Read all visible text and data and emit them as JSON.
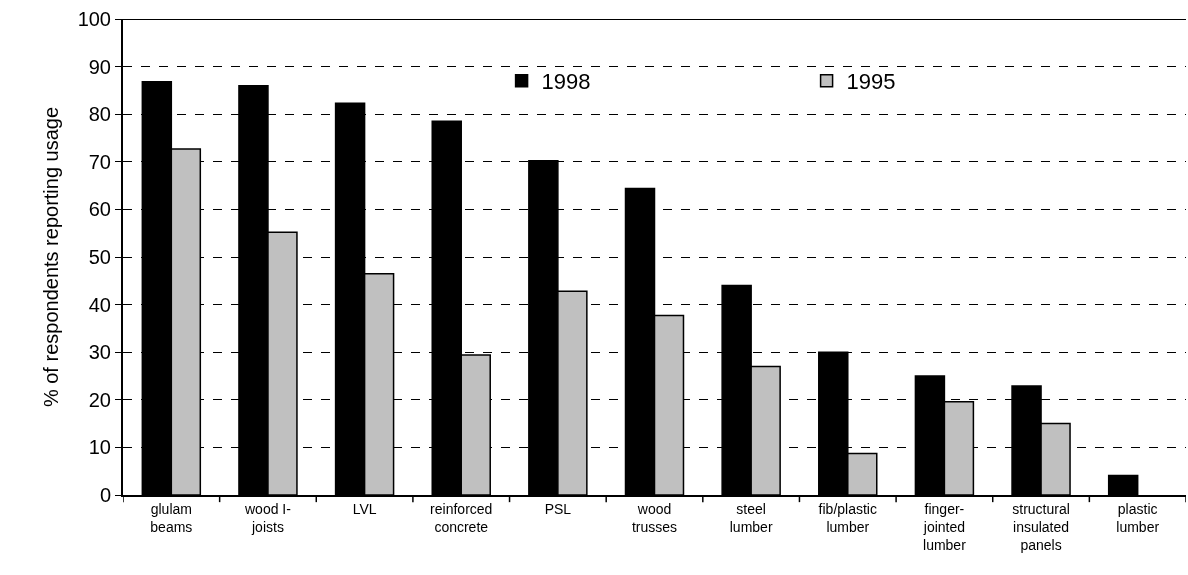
{
  "chart_data": {
    "type": "bar",
    "ylabel": "% of respondents reporting usage",
    "categories": [
      "glulam\nbeams",
      "wood I-\njoists",
      "LVL",
      "reinforced\nconcrete",
      "PSL",
      "wood\ntrusses",
      "steel\nlumber",
      "fib/plastic\nlumber",
      "finger-\njointed\nlumber",
      "structural\ninsulated\npanels",
      "plastic\nlumber"
    ],
    "series": [
      {
        "name": "1998",
        "color": "#000000",
        "values": [
          86.8,
          86.0,
          82.3,
          78.5,
          70.2,
          64.4,
          44.0,
          30.0,
          25.0,
          22.9,
          4.1
        ]
      },
      {
        "name": "1995",
        "color": "#c0c0c0",
        "values": [
          72.7,
          55.2,
          46.5,
          29.4,
          42.8,
          37.7,
          27.0,
          8.7,
          19.6,
          15.0,
          null
        ]
      }
    ],
    "ylim": [
      0,
      100
    ],
    "yticks": [
      0,
      10,
      20,
      30,
      40,
      50,
      60,
      70,
      80,
      90,
      100
    ],
    "grid": "y",
    "legend": "top right"
  }
}
